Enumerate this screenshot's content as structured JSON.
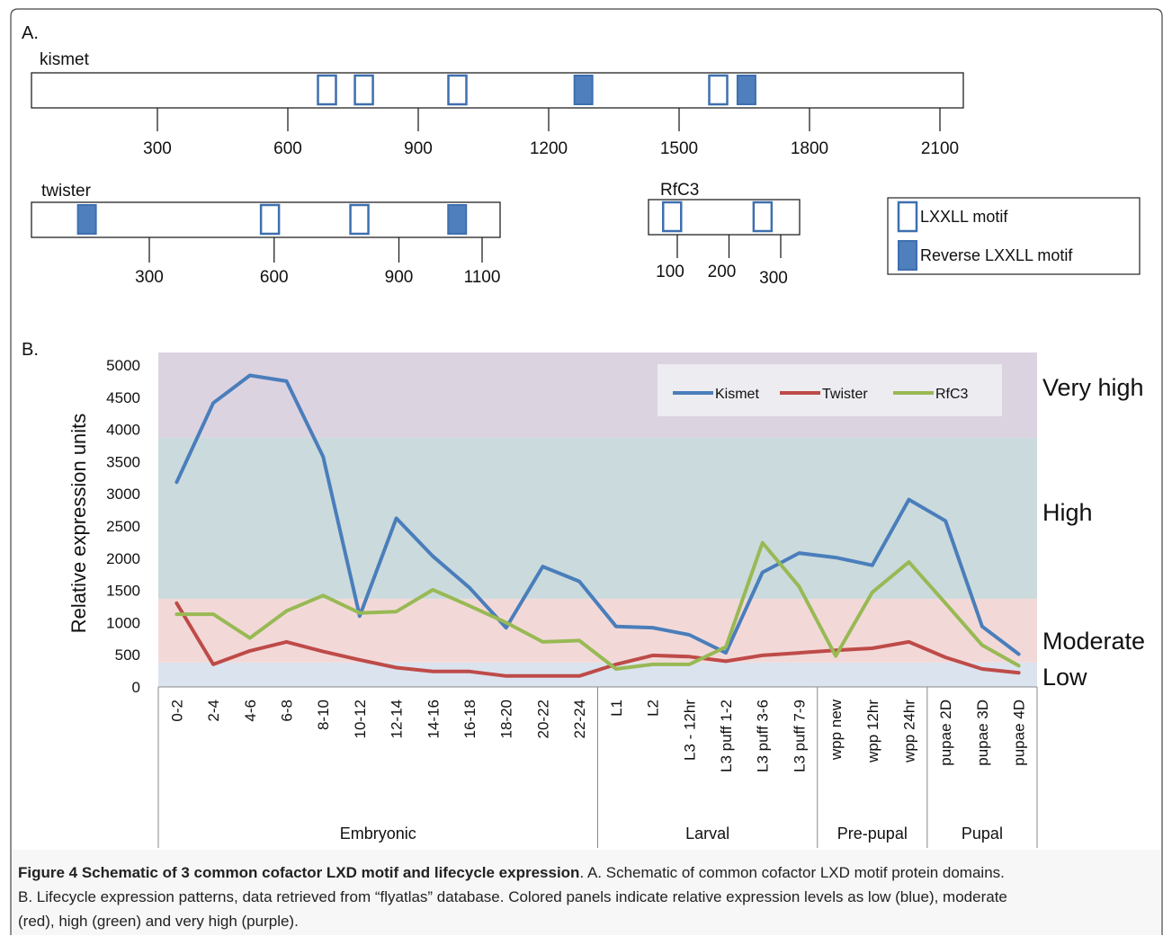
{
  "panel_a": {
    "label": "A.",
    "proteins": [
      {
        "name": "kismet",
        "length": 2160,
        "ticks": [
          300,
          600,
          900,
          1200,
          1500,
          1800,
          2100
        ],
        "motifs": [
          {
            "pos": 690,
            "type": "LXXLL"
          },
          {
            "pos": 775,
            "type": "LXXLL"
          },
          {
            "pos": 990,
            "type": "LXXLL"
          },
          {
            "pos": 1280,
            "type": "reverse"
          },
          {
            "pos": 1590,
            "type": "LXXLL"
          },
          {
            "pos": 1655,
            "type": "reverse"
          }
        ]
      },
      {
        "name": "twister",
        "length": 1140,
        "ticks": [
          300,
          600,
          900,
          1100
        ],
        "motifs": [
          {
            "pos": 150,
            "type": "reverse"
          },
          {
            "pos": 590,
            "type": "LXXLL"
          },
          {
            "pos": 805,
            "type": "LXXLL"
          },
          {
            "pos": 1040,
            "type": "reverse"
          }
        ]
      },
      {
        "name": "RfC3",
        "length": 360,
        "ticks": [
          100,
          200,
          300
        ],
        "tick_labels": [
          "100",
          "200",
          "300"
        ],
        "motifs": [
          {
            "pos": 90,
            "type": "LXXLL"
          },
          {
            "pos": 265,
            "type": "LXXLL"
          }
        ]
      }
    ],
    "legend": {
      "lxxll": "LXXLL motif",
      "reverse": "Reverse LXXLL motif"
    },
    "colors": {
      "filled": "#4f7fbd",
      "outline": "#3e6fae"
    }
  },
  "panel_b": {
    "label": "B."
  },
  "chart_data": {
    "type": "line",
    "ylabel": "Relative expression units",
    "ylim": [
      0,
      5000
    ],
    "yticks": [
      0,
      500,
      1000,
      1500,
      2000,
      2500,
      3000,
      3500,
      4000,
      4500,
      5000
    ],
    "categories": [
      "0-2",
      "2-4",
      "4-6",
      "6-8",
      "8-10",
      "10-12",
      "12-14",
      "14-16",
      "16-18",
      "18-20",
      "20-22",
      "22-24",
      "L1",
      "L2",
      "L3 - 12hr",
      "L3 puff 1-2",
      "L3 puff 3-6",
      "L3 puff 7-9",
      "wpp new",
      "wpp 12hr",
      "wpp 24hr",
      "pupae 2D",
      "pupae 3D",
      "pupae 4D"
    ],
    "groups": [
      {
        "name": "Embryonic",
        "start": 0,
        "end": 11
      },
      {
        "name": "Larval",
        "start": 12,
        "end": 17
      },
      {
        "name": "Pre-pupal",
        "start": 18,
        "end": 20
      },
      {
        "name": "Pupal",
        "start": 21,
        "end": 23
      }
    ],
    "series": [
      {
        "name": "Kismet",
        "color": "#4a7ebb",
        "values": [
          3180,
          4410,
          4840,
          4750,
          3580,
          1100,
          2620,
          2030,
          1540,
          920,
          1870,
          1640,
          940,
          920,
          810,
          530,
          1780,
          2080,
          2010,
          1890,
          2910,
          2580,
          940,
          510
        ]
      },
      {
        "name": "Twister",
        "color": "#be4b48",
        "values": [
          1300,
          350,
          560,
          700,
          550,
          420,
          300,
          240,
          240,
          170,
          170,
          170,
          350,
          490,
          470,
          400,
          490,
          530,
          570,
          600,
          700,
          460,
          280,
          220
        ]
      },
      {
        "name": "RfC3",
        "color": "#98b954",
        "values": [
          1130,
          1130,
          760,
          1180,
          1420,
          1150,
          1170,
          1510,
          1260,
          1000,
          700,
          720,
          280,
          350,
          350,
          620,
          2240,
          1560,
          480,
          1470,
          1940,
          1300,
          650,
          330
        ]
      }
    ],
    "bands": [
      {
        "name": "Low",
        "from": 0,
        "to": 380,
        "color": "#dbe3ef"
      },
      {
        "name": "Moderate",
        "from": 380,
        "to": 1370,
        "color": "#f2d9d8"
      },
      {
        "name": "High",
        "from": 1370,
        "to": 3870,
        "color": "#cbdadd"
      },
      {
        "name": "Very high",
        "from": 3870,
        "to": 5210,
        "color": "#dcd3e1"
      }
    ],
    "legend_position": "top-right",
    "grid": false
  },
  "caption": {
    "bold": "Figure 4 Schematic of 3 common cofactor LXD motif and lifecycle expression",
    "line1_rest": ". A. Schematic of common cofactor LXD motif protein domains.",
    "line2": "B. Lifecycle expression patterns, data retrieved from “flyatlas” database. Colored panels indicate relative expression levels as low (blue), moderate",
    "line3": "(red), high (green) and very high (purple)."
  }
}
